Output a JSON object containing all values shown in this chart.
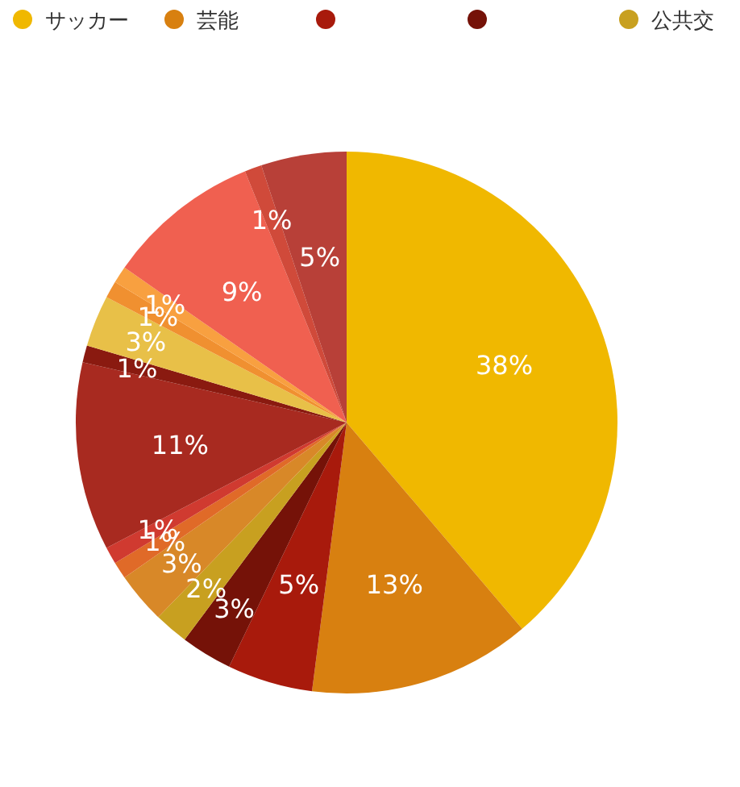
{
  "chart_data": {
    "type": "pie",
    "categories": [
      "サッカー",
      "芸能",
      null,
      null,
      "公共交",
      null,
      null,
      null,
      null,
      null,
      null,
      null,
      null,
      null,
      null,
      null
    ],
    "values": [
      38,
      13,
      5,
      3,
      2,
      3,
      1,
      1,
      11,
      1,
      3,
      1,
      1,
      9,
      1,
      5
    ],
    "colors": [
      "#f0b800",
      "#d88010",
      "#a81a0c",
      "#751208",
      "#c8a020",
      "#d88828",
      "#e06a28",
      "#d03a30",
      "#a82a20",
      "#8a1a10",
      "#e8c048",
      "#f09030",
      "#f8a040",
      "#f06050",
      "#d04a3a",
      "#b84038"
    ],
    "value_labels": [
      "38%",
      "13%",
      "5%",
      "3%",
      "2%",
      "3%",
      "1%",
      "1%",
      "11%",
      "1%",
      "3%",
      "1%",
      "1%",
      "9%",
      "1%",
      "5%"
    ],
    "legend": "top"
  }
}
